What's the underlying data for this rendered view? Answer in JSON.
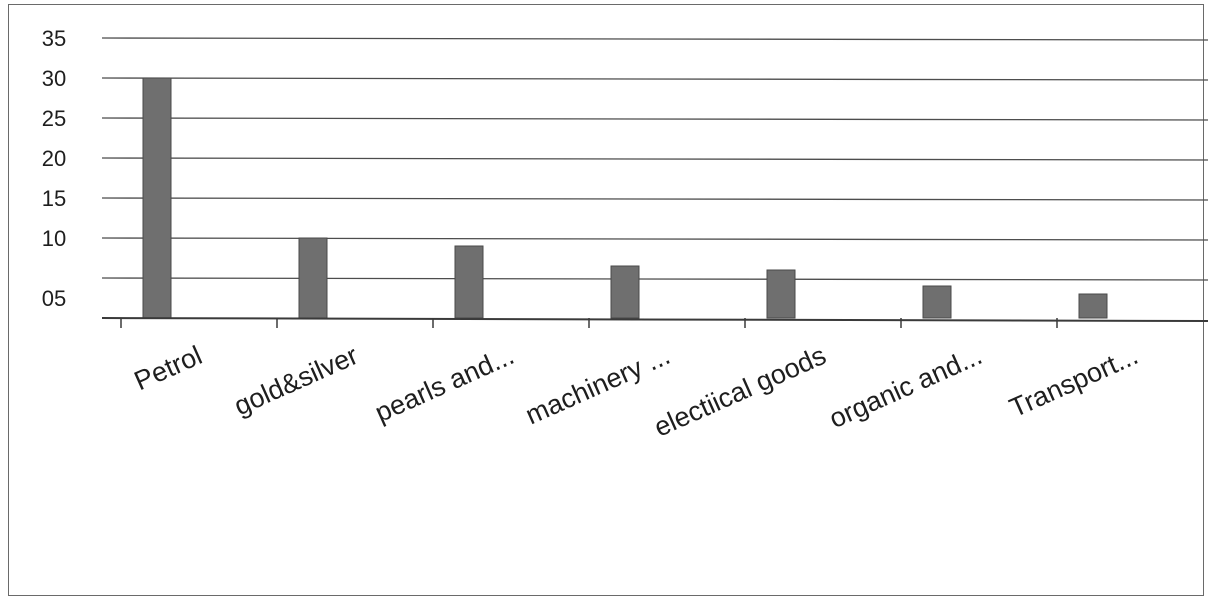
{
  "chart_data": {
    "type": "bar",
    "categories": [
      "Petrol",
      "gold&silver",
      "pearls and...",
      "machinery ...",
      "electiical goods",
      "organic and...",
      "Transport..."
    ],
    "values": [
      30,
      10,
      9,
      6.5,
      6,
      4,
      3
    ],
    "y_ticks": [
      "35",
      "30",
      "25",
      "20",
      "15",
      "10",
      "05"
    ],
    "ylim": [
      0,
      35
    ],
    "grid": true,
    "legend": "none",
    "colors": {
      "bar": "#6f6f6f",
      "grid": "#4d4d4d",
      "axis": "#3a3a3a",
      "text": "#1e1e1e"
    }
  }
}
